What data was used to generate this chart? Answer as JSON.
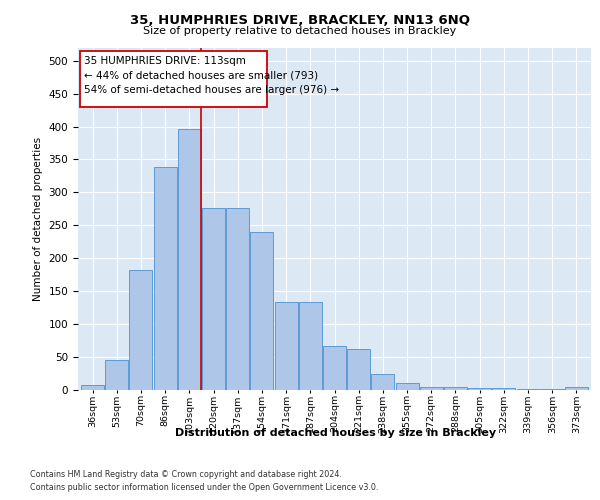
{
  "title_line1": "35, HUMPHRIES DRIVE, BRACKLEY, NN13 6NQ",
  "title_line2": "Size of property relative to detached houses in Brackley",
  "xlabel": "Distribution of detached houses by size in Brackley",
  "ylabel": "Number of detached properties",
  "categories": [
    "36sqm",
    "53sqm",
    "70sqm",
    "86sqm",
    "103sqm",
    "120sqm",
    "137sqm",
    "154sqm",
    "171sqm",
    "187sqm",
    "204sqm",
    "221sqm",
    "238sqm",
    "255sqm",
    "272sqm",
    "288sqm",
    "305sqm",
    "322sqm",
    "339sqm",
    "356sqm",
    "373sqm"
  ],
  "values": [
    8,
    46,
    182,
    338,
    397,
    277,
    277,
    240,
    133,
    133,
    67,
    62,
    25,
    11,
    5,
    5,
    3,
    3,
    2,
    2,
    4
  ],
  "bar_color": "#aec6e8",
  "bar_edge_color": "#5b9bd5",
  "vline_x": 4.5,
  "vline_color": "#cc0000",
  "annotation_line1": "35 HUMPHRIES DRIVE: 113sqm",
  "annotation_line2": "← 44% of detached houses are smaller (793)",
  "annotation_line3": "54% of semi-detached houses are larger (976) →",
  "annotation_box_color": "#ffffff",
  "annotation_box_edge": "#cc0000",
  "ylim": [
    0,
    520
  ],
  "yticks": [
    0,
    50,
    100,
    150,
    200,
    250,
    300,
    350,
    400,
    450,
    500
  ],
  "footer_line1": "Contains HM Land Registry data © Crown copyright and database right 2024.",
  "footer_line2": "Contains public sector information licensed under the Open Government Licence v3.0.",
  "bg_color": "#dce9f5",
  "fig_bg": "#ffffff"
}
